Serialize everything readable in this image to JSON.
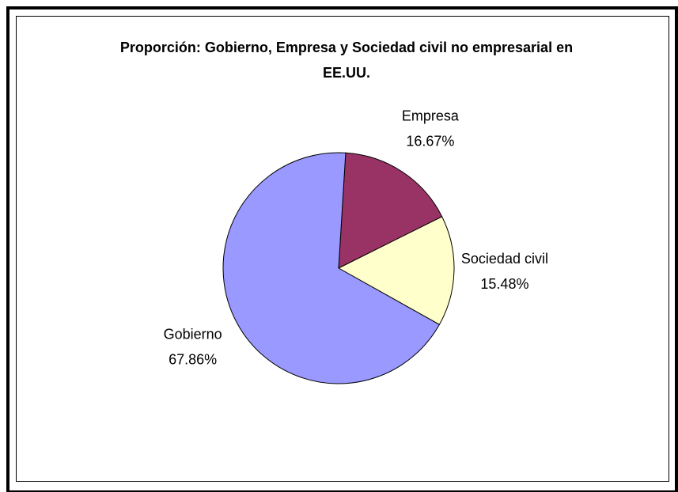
{
  "chart_data": {
    "type": "pie",
    "title": "Proporción: Gobierno, Empresa y Sociedad civil no empresarial en EE.UU.",
    "categories": [
      "Empresa",
      "Sociedad civil",
      "Gobierno"
    ],
    "values": [
      16.67,
      15.48,
      67.86
    ],
    "value_labels": [
      "16.67%",
      "15.48%",
      "67.86%"
    ],
    "colors": [
      "#993366",
      "#ffffcc",
      "#9999ff"
    ]
  }
}
